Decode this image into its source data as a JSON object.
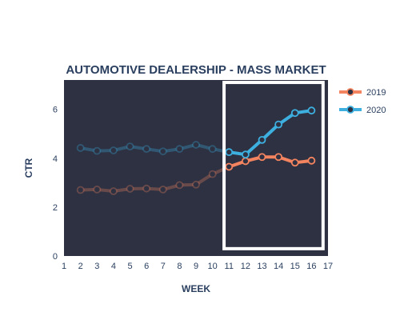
{
  "chart_data": {
    "type": "line",
    "title": "AUTOMOTIVE DEALERSHIP - MASS MARKET",
    "xlabel": "WEEK",
    "ylabel": "CTR",
    "xlim": [
      1,
      17
    ],
    "ylim": [
      0,
      7.2
    ],
    "xticks": [
      1,
      2,
      3,
      4,
      5,
      6,
      7,
      8,
      9,
      10,
      11,
      12,
      13,
      14,
      15,
      16,
      17
    ],
    "yticks": [
      0,
      2,
      4,
      6
    ],
    "highlight_range": {
      "x": [
        10.7,
        16.7
      ],
      "y": [
        0.3,
        7.1
      ]
    },
    "dim_before_x": 11,
    "colors": {
      "plot_bg": "#2d3142",
      "box": "#ffffff"
    },
    "legend_position": "right",
    "series": [
      {
        "name": "2019",
        "color": "#f4845f",
        "x": [
          2,
          3,
          4,
          5,
          6,
          7,
          8,
          9,
          10,
          11,
          12,
          13,
          14,
          15,
          16
        ],
        "y": [
          2.7,
          2.72,
          2.65,
          2.75,
          2.76,
          2.72,
          2.9,
          2.92,
          3.35,
          3.65,
          3.88,
          4.05,
          4.05,
          3.82,
          3.9
        ]
      },
      {
        "name": "2020",
        "color": "#3db0e0",
        "x": [
          2,
          3,
          4,
          5,
          6,
          7,
          8,
          9,
          10,
          11,
          12,
          13,
          14,
          15,
          16
        ],
        "y": [
          4.42,
          4.3,
          4.32,
          4.48,
          4.38,
          4.28,
          4.38,
          4.55,
          4.38,
          4.25,
          4.15,
          4.75,
          5.38,
          5.85,
          5.95
        ]
      }
    ]
  }
}
